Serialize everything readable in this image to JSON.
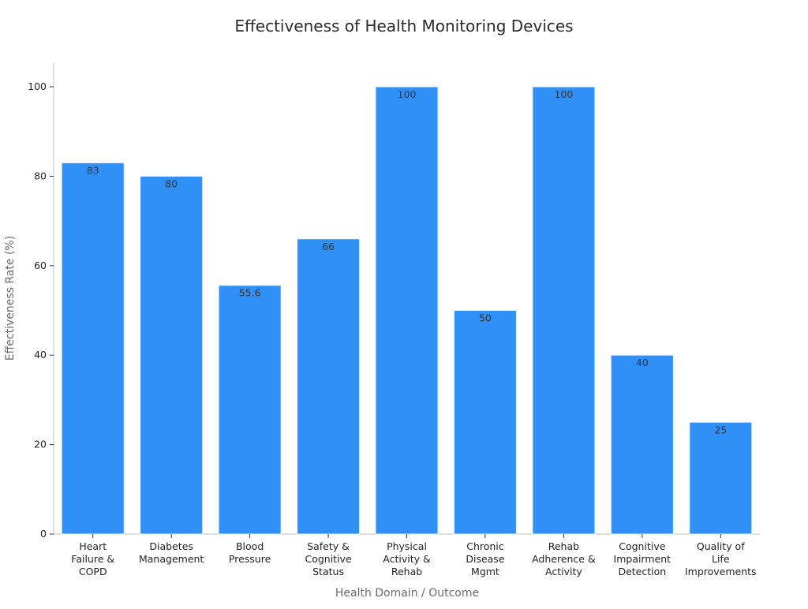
{
  "chart_data": {
    "type": "bar",
    "title": "Effectiveness of Health Monitoring Devices",
    "xlabel": "Health Domain / Outcome",
    "ylabel": "Effectiveness Rate (%)",
    "ylim": [
      0,
      105
    ],
    "yticks": [
      0,
      20,
      40,
      60,
      80,
      100
    ],
    "grid": false,
    "bar_color": "#2f91f7",
    "bar_edge_color": "#e6f1fe",
    "categories": [
      [
        "Heart",
        "Failure &",
        "COPD"
      ],
      [
        "Diabetes",
        "Management"
      ],
      [
        "Blood",
        "Pressure"
      ],
      [
        "Safety &",
        "Cognitive",
        "Status"
      ],
      [
        "Physical",
        "Activity &",
        "Rehab"
      ],
      [
        "Chronic",
        "Disease",
        "Mgmt"
      ],
      [
        "Rehab",
        "Adherence &",
        "Activity"
      ],
      [
        "Cognitive",
        "Impairment",
        "Detection"
      ],
      [
        "Quality of",
        "Life",
        "Improvements"
      ]
    ],
    "values": [
      83,
      80,
      55.6,
      66,
      100,
      50,
      100,
      40,
      25
    ],
    "data_labels": [
      "83",
      "80",
      "55.6",
      "66",
      "100",
      "50",
      "100",
      "40",
      "25"
    ]
  }
}
